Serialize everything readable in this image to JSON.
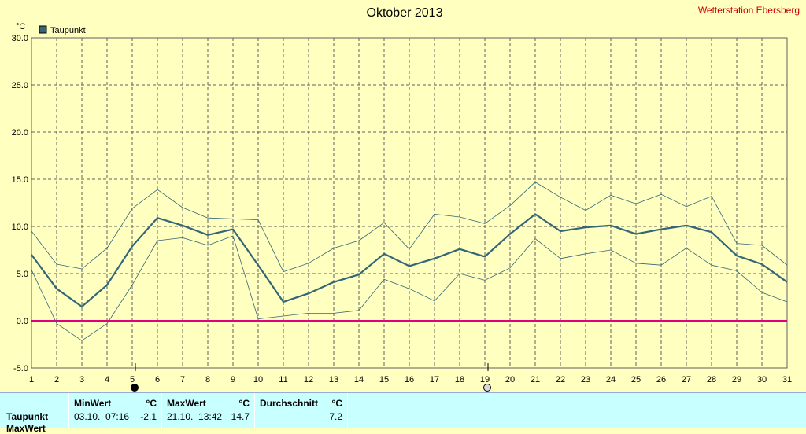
{
  "header": {
    "title": "Oktober 2013",
    "station": "Wetterstation Ebersberg",
    "unit_label": "°C"
  },
  "colors": {
    "background": "#ffffc0",
    "main_series": "#336677",
    "minmax_series": "#336677",
    "zero_line": "#e0007f",
    "grid": "#606060",
    "station_text": "#cc0000",
    "panel_bg": "#c8ffff"
  },
  "chart_data": {
    "type": "line",
    "legend": {
      "entries": [
        "Taupunkt"
      ],
      "placement": "top-left"
    },
    "ylim": [
      -5,
      30
    ],
    "yticks": [
      "30.0",
      "25.0",
      "20.0",
      "15.0",
      "10.0",
      "5.0",
      "0.0",
      "-5.0"
    ],
    "xlim": [
      1,
      31
    ],
    "x": [
      1,
      2,
      3,
      4,
      5,
      6,
      7,
      8,
      9,
      10,
      11,
      12,
      13,
      14,
      15,
      16,
      17,
      18,
      19,
      20,
      21,
      22,
      23,
      24,
      25,
      26,
      27,
      28,
      29,
      30,
      31
    ],
    "grid": true,
    "reference_line": 0,
    "series": [
      {
        "name": "Taupunkt",
        "values": [
          7.0,
          3.4,
          1.5,
          3.8,
          7.9,
          10.9,
          10.1,
          9.1,
          9.7,
          5.9,
          2.0,
          2.9,
          4.1,
          4.9,
          7.1,
          5.8,
          6.6,
          7.6,
          6.8,
          9.2,
          11.3,
          9.5,
          9.9,
          10.1,
          9.2,
          9.7,
          10.1,
          9.4,
          6.9,
          6.0,
          4.1
        ]
      },
      {
        "values": [
          9.5,
          6.0,
          5.5,
          7.7,
          11.9,
          13.9,
          12.0,
          10.9,
          10.8,
          10.7,
          5.2,
          6.1,
          7.7,
          8.5,
          10.4,
          7.6,
          11.3,
          11.0,
          10.3,
          12.2,
          14.7,
          13.1,
          11.7,
          13.3,
          12.4,
          13.4,
          12.1,
          13.2,
          8.2,
          8.0,
          5.9
        ]
      },
      {
        "values": [
          5.4,
          -0.3,
          -2.1,
          -0.3,
          3.8,
          8.5,
          8.8,
          8.0,
          9.0,
          0.2,
          0.5,
          0.8,
          0.8,
          1.1,
          4.4,
          3.4,
          2.1,
          5.0,
          4.3,
          5.6,
          8.7,
          6.6,
          7.1,
          7.5,
          6.1,
          5.9,
          7.7,
          5.9,
          5.3,
          3.0,
          2.0
        ]
      }
    ],
    "markers": [
      {
        "x": 5,
        "style": "filled"
      },
      {
        "x": 19,
        "style": "open"
      }
    ]
  },
  "stats": {
    "columns": [
      {
        "header": "MinWert",
        "unit": "°C",
        "date": "03.10.  07:16",
        "value": "-2.1"
      },
      {
        "header": "MaxWert",
        "unit": "°C",
        "date": "21.10.  13:42",
        "value": "14.7"
      },
      {
        "header": "Durchschnitt",
        "unit": "°C",
        "date": "",
        "value": "7.2"
      }
    ],
    "row_label": "Taupunkt",
    "row_label_2": "MaxWert"
  }
}
